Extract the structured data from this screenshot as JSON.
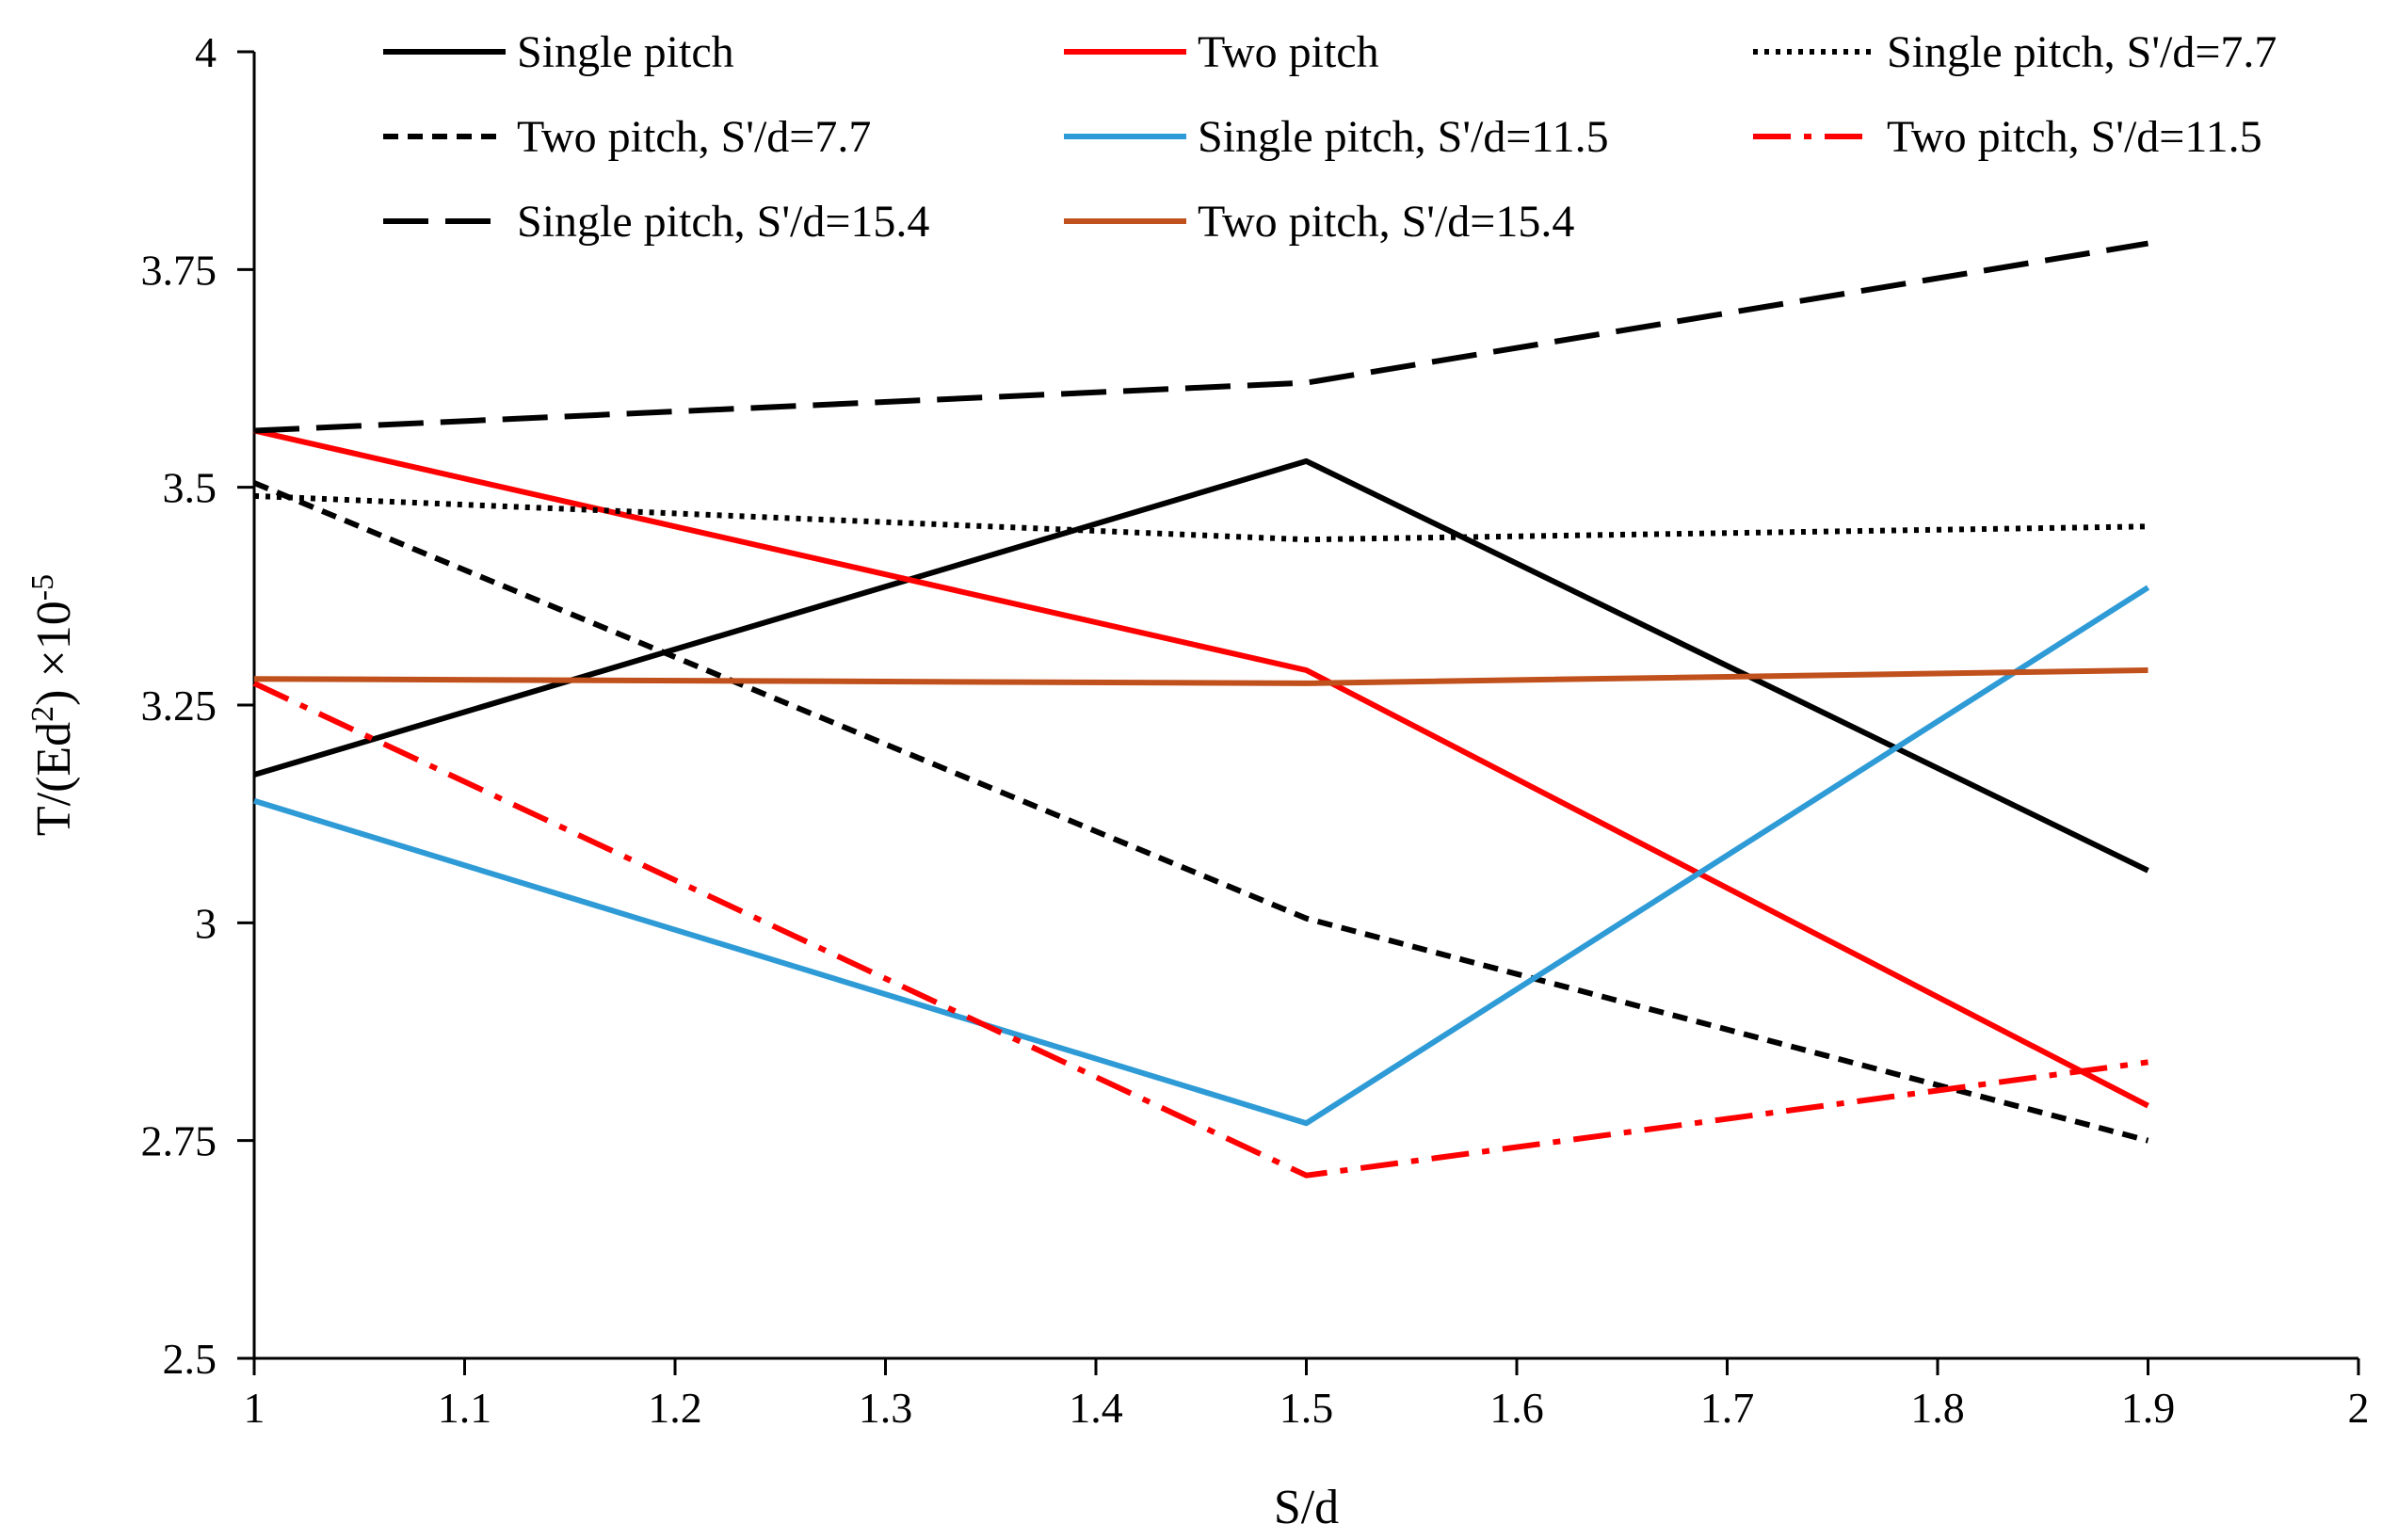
{
  "chart_data": {
    "type": "line",
    "title": "",
    "xlabel": "S/d",
    "ylabel_main": "T/(Ed",
    "ylabel_sup2": "2",
    "ylabel_mid": ") ×10",
    "ylabel_exp": "-5",
    "xlim": [
      1,
      2
    ],
    "ylim": [
      2.5,
      4
    ],
    "x_ticks": [
      1,
      1.1,
      1.2,
      1.3,
      1.4,
      1.5,
      1.6,
      1.7,
      1.8,
      1.9,
      2
    ],
    "x_tick_labels": [
      "1",
      "1.1",
      "1.2",
      "1.3",
      "1.4",
      "1.5",
      "1.6",
      "1.7",
      "1.8",
      "1.9",
      "2"
    ],
    "y_ticks": [
      2.5,
      2.75,
      3,
      3.25,
      3.5,
      3.75,
      4
    ],
    "y_tick_labels": [
      "2.5",
      "2.75",
      "3",
      "3.25",
      "3.5",
      "3.75",
      "4"
    ],
    "grid": false,
    "legend_position": "top",
    "x": [
      1,
      1.5,
      1.9
    ],
    "series": [
      {
        "name": "Single pitch",
        "values": [
          3.17,
          3.53,
          3.06
        ],
        "color": "#000000",
        "style": "solid"
      },
      {
        "name": "Two pitch",
        "values": [
          3.565,
          3.29,
          2.79
        ],
        "color": "#ff0000",
        "style": "solid"
      },
      {
        "name": "Single pitch, S'/d=7.7",
        "values": [
          3.49,
          3.44,
          3.455
        ],
        "color": "#000000",
        "style": "dotted"
      },
      {
        "name": "Two pitch, S'/d=7.7",
        "values": [
          3.505,
          3.005,
          2.75
        ],
        "color": "#000000",
        "style": "dashed"
      },
      {
        "name": "Single pitch, S'/d=11.5",
        "values": [
          3.14,
          2.77,
          3.385
        ],
        "color": "#2e9bd6",
        "style": "solid"
      },
      {
        "name": "Two pitch, S'/d=11.5",
        "values": [
          3.275,
          2.71,
          2.84
        ],
        "color": "#ff0000",
        "style": "dashdot"
      },
      {
        "name": "Single pitch, S'/d=15.4",
        "values": [
          3.565,
          3.62,
          3.78
        ],
        "color": "#000000",
        "style": "longdash"
      },
      {
        "name": "Two pitch, S'/d=15.4",
        "values": [
          3.28,
          3.275,
          3.29
        ],
        "color": "#c0501c",
        "style": "solid"
      }
    ]
  }
}
